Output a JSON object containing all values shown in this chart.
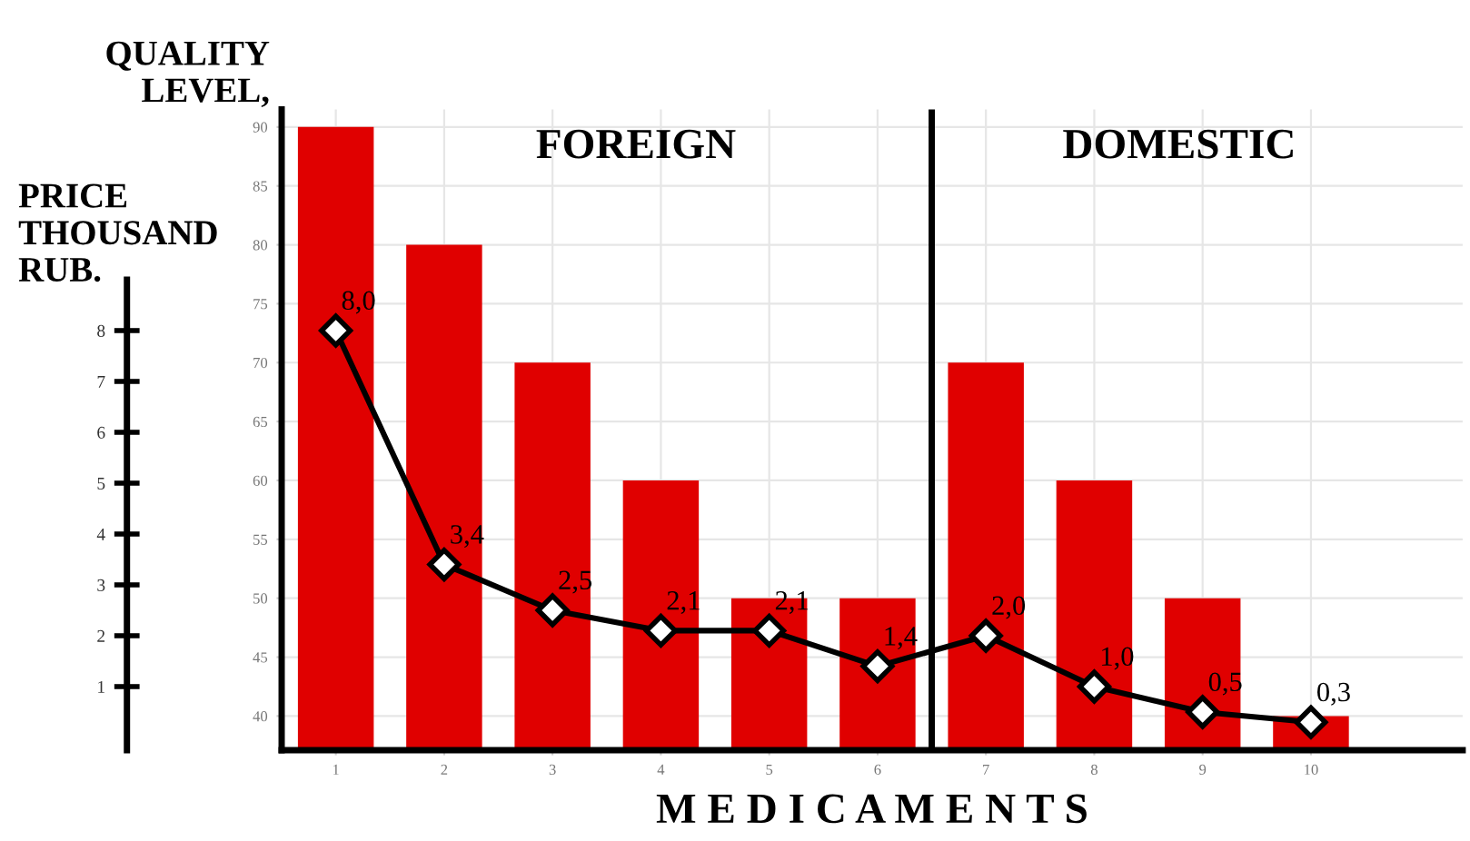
{
  "chart_data": {
    "type": "bar",
    "xlabel": "M E D I C A M E N T S",
    "ylabel": "QUALITY LEVEL,",
    "y2label": "PRICE THOUSAND RUB.",
    "annotations": [
      "FOREIGN",
      "DOMESTIC"
    ],
    "x": [
      1,
      2,
      3,
      4,
      5,
      6,
      7,
      8,
      9,
      10
    ],
    "xlim": [
      0.5,
      11.4
    ],
    "xticks": [
      1,
      2,
      3,
      4,
      5,
      6,
      7,
      8,
      9,
      10
    ],
    "ylim": [
      37.1,
      91.5
    ],
    "yticks": [
      40,
      45,
      50,
      55,
      60,
      65,
      70,
      75,
      80,
      85,
      90
    ],
    "y2lim": [
      -0.25,
      12.35
    ],
    "y2ticks": [
      1,
      2,
      3,
      4,
      5,
      6,
      7,
      8
    ],
    "grid": true,
    "legend": false,
    "ref_lines": [
      {
        "axis": "x",
        "value": 6.5,
        "color": "#000000",
        "line_style": "solid"
      }
    ],
    "series": [
      {
        "color": "#e00000",
        "values": [
          90,
          80,
          70,
          60,
          50,
          50,
          70,
          60,
          50,
          40
        ]
      },
      {
        "type": "line",
        "axis": "y2",
        "color": "#000000",
        "marker": "diamond",
        "line_style": "solid",
        "values": [
          8.0,
          3.4,
          2.5,
          2.1,
          2.1,
          1.4,
          2.0,
          1.0,
          0.5,
          0.3
        ],
        "value_labels": [
          "8,0",
          "3,4",
          "2,5",
          "2,1",
          "2,1",
          "1,4",
          "2,0",
          "1,0",
          "0,5",
          "0,3"
        ]
      }
    ]
  }
}
